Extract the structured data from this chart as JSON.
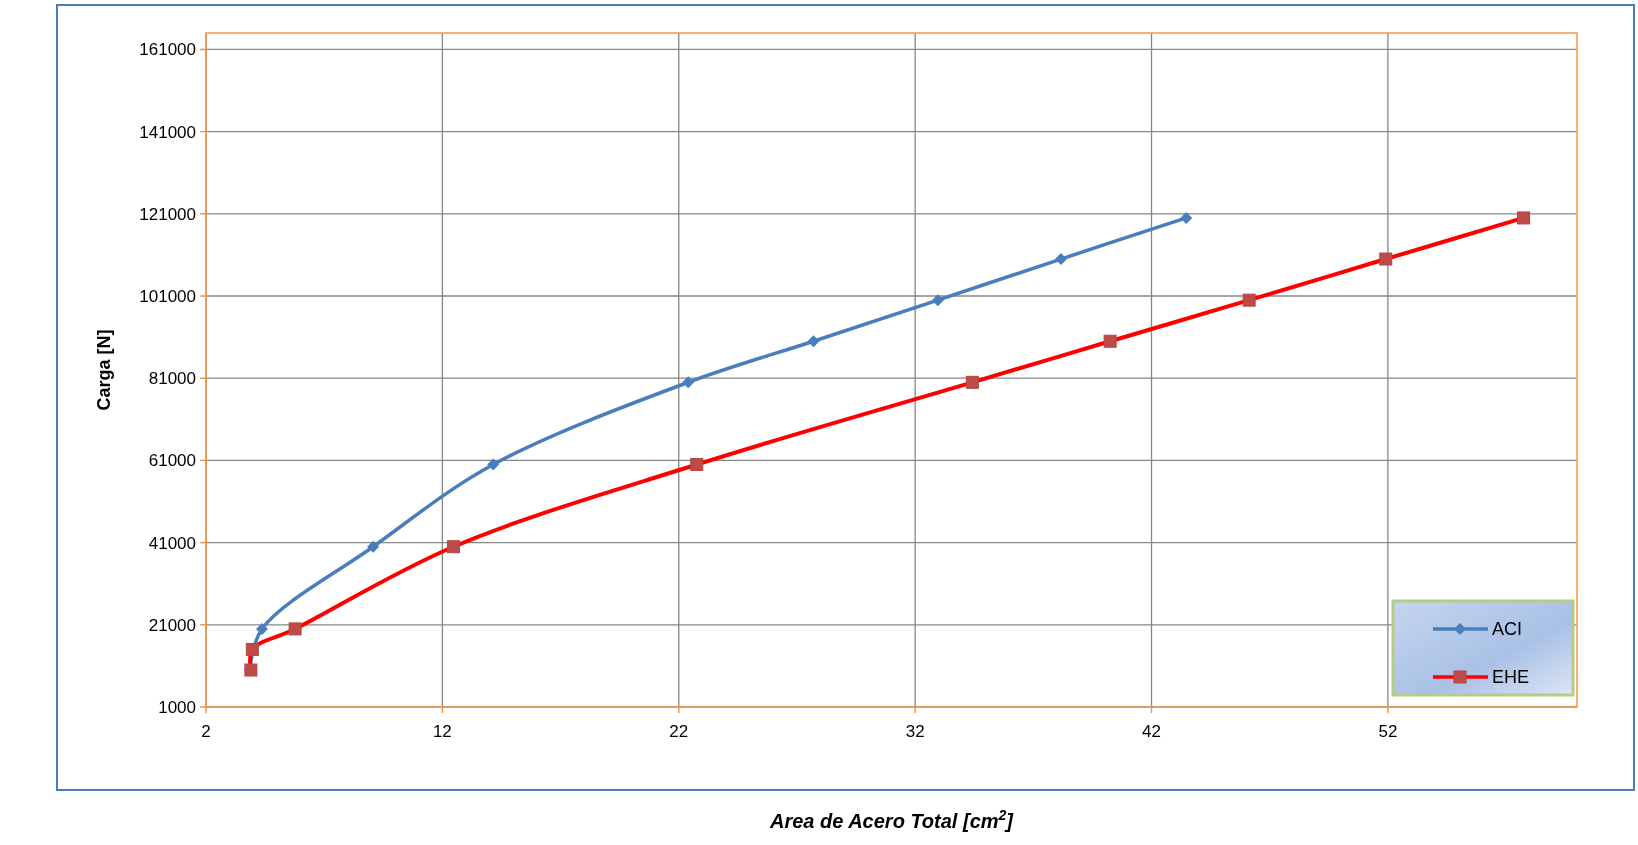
{
  "chart_data": {
    "type": "line",
    "xlabel": "Area de Acero Total  [cm$^{2}$]",
    "ylabel": "Carga  [N]",
    "xlim": [
      2,
      60
    ],
    "xticks": [
      2,
      12,
      22,
      32,
      42,
      52
    ],
    "ylim": [
      1000,
      165000
    ],
    "yticks": [
      1000,
      21000,
      41000,
      61000,
      81000,
      101000,
      121000,
      141000,
      161000
    ],
    "grid": true,
    "legend": "bottom right",
    "line_style": "solid",
    "series": [
      {
        "name": "ACI",
        "color": "#4a7ebb",
        "marker": "diamond",
        "x": [
          3.85,
          3.9,
          4.37,
          9.07,
          14.15,
          22.4,
          27.7,
          32.96,
          38.17,
          43.47
        ],
        "values": [
          10000,
          null,
          20000,
          40000,
          60000,
          80000,
          90000,
          100000,
          110000,
          120000
        ]
      },
      {
        "name": "EHE",
        "color": "#ff0000",
        "marker": "square",
        "x": [
          3.9,
          3.96,
          5.77,
          12.47,
          22.76,
          34.42,
          40.25,
          46.13,
          51.91,
          57.74
        ],
        "values": [
          10000,
          15000,
          20000,
          40000,
          60000,
          80000,
          90000,
          100000,
          110000,
          120000
        ]
      }
    ]
  }
}
